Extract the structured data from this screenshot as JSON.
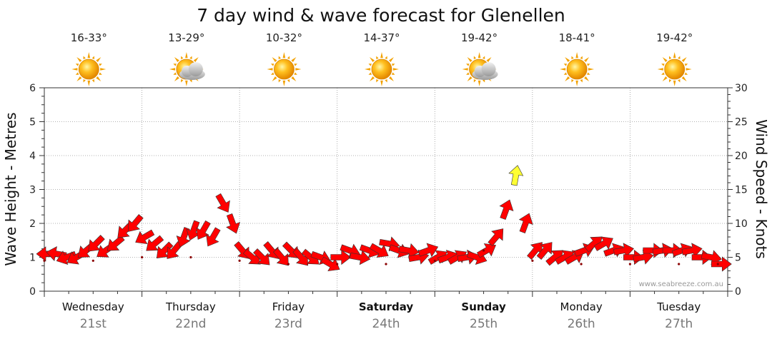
{
  "chart_data": {
    "type": "scatter",
    "title": "7 day wind & wave forecast for Glenellen",
    "ylabel_left": "Wave Height - Metres",
    "ylabel_right": "Wind Speed - Knots",
    "yticks_left": [
      "0",
      "1",
      "2",
      "3",
      "4",
      "5",
      "6"
    ],
    "yticks_right": [
      "0",
      "5",
      "10",
      "15",
      "20",
      "25",
      "30"
    ],
    "ylim_left": [
      0,
      6
    ],
    "ylim_right": [
      0,
      30
    ],
    "grid": true,
    "credit": "www.seabreeze.com.au",
    "days": [
      {
        "name": "Wednesday",
        "date": "21st",
        "temp": "16-33°",
        "icon": "sun-icon",
        "bold": false
      },
      {
        "name": "Thursday",
        "date": "22nd",
        "temp": "13-29°",
        "icon": "sun-cloud-icon",
        "bold": false
      },
      {
        "name": "Friday",
        "date": "23rd",
        "temp": "10-32°",
        "icon": "sun-icon",
        "bold": false
      },
      {
        "name": "Saturday",
        "date": "24th",
        "temp": "14-37°",
        "icon": "sun-icon",
        "bold": true
      },
      {
        "name": "Sunday",
        "date": "25th",
        "temp": "19-42°",
        "icon": "sun-cloud-icon",
        "bold": true
      },
      {
        "name": "Monday",
        "date": "26th",
        "temp": "18-41°",
        "icon": "sun-icon",
        "bold": false
      },
      {
        "name": "Tuesday",
        "date": "27th",
        "temp": "19-42°",
        "icon": "sun-icon",
        "bold": false
      }
    ],
    "colors": {
      "strong_wind": "#ff0000",
      "light_wind": "#ffff33",
      "outline": "#333333",
      "grid": "#999999"
    },
    "wind_series": {
      "name": "",
      "x_days": [
        0.0,
        0.1,
        0.2,
        0.3,
        0.4,
        0.5,
        0.6,
        0.7,
        0.8,
        0.9,
        1.0,
        1.1,
        1.2,
        1.3,
        1.4,
        1.5,
        1.6,
        1.7,
        1.8,
        1.9,
        2.0,
        2.1,
        2.2,
        2.3,
        2.4,
        2.5,
        2.6,
        2.7,
        2.8,
        2.9,
        3.0,
        3.1,
        3.2,
        3.3,
        3.4,
        3.5,
        3.6,
        3.7,
        3.8,
        3.9,
        4.0,
        4.1,
        4.2,
        4.3,
        4.4,
        4.5,
        4.6,
        4.7,
        4.8,
        4.9,
        5.0,
        5.1,
        5.2,
        5.3,
        5.4,
        5.5,
        5.6,
        5.7,
        5.8,
        5.9,
        6.0,
        6.1,
        6.2,
        6.3,
        6.4,
        6.5,
        6.6,
        6.7,
        6.8,
        6.9
      ],
      "knots": [
        5.5,
        5.5,
        5,
        5,
        6,
        7,
        6,
        7,
        9,
        10,
        8,
        7,
        6,
        6,
        8,
        9,
        9,
        8,
        13,
        10,
        6,
        5,
        5,
        6,
        5,
        6,
        5,
        5,
        5,
        4,
        5,
        6,
        5,
        6,
        6,
        7,
        6,
        6,
        5,
        6,
        5,
        5,
        5,
        5,
        5,
        6,
        8,
        12,
        17,
        10,
        6,
        6,
        5,
        5,
        5,
        6,
        7,
        7,
        6,
        6,
        5,
        5,
        6,
        6,
        6,
        6,
        6,
        5,
        5,
        4
      ],
      "direction_deg": [
        270,
        280,
        250,
        240,
        230,
        225,
        235,
        230,
        225,
        220,
        240,
        230,
        225,
        220,
        200,
        200,
        210,
        210,
        150,
        160,
        140,
        130,
        135,
        140,
        140,
        135,
        140,
        130,
        110,
        120,
        90,
        110,
        100,
        110,
        120,
        100,
        110,
        100,
        80,
        70,
        60,
        70,
        60,
        80,
        110,
        60,
        40,
        20,
        10,
        20,
        40,
        40,
        50,
        60,
        60,
        70,
        50,
        60,
        70,
        80,
        90,
        80,
        90,
        80,
        90,
        70,
        80,
        90,
        100,
        90
      ]
    },
    "wave_series": {
      "name": "",
      "x_days": [
        0.0,
        0.5,
        1.0,
        1.5,
        2.0,
        2.5,
        3.0,
        3.5,
        4.0,
        4.5,
        5.0,
        5.5,
        6.0,
        6.5,
        6.9
      ],
      "metres": [
        0.9,
        0.9,
        1.0,
        1.0,
        0.9,
        0.8,
        0.8,
        0.8,
        0.9,
        1.2,
        0.9,
        0.8,
        0.8,
        0.8,
        0.8
      ]
    }
  }
}
